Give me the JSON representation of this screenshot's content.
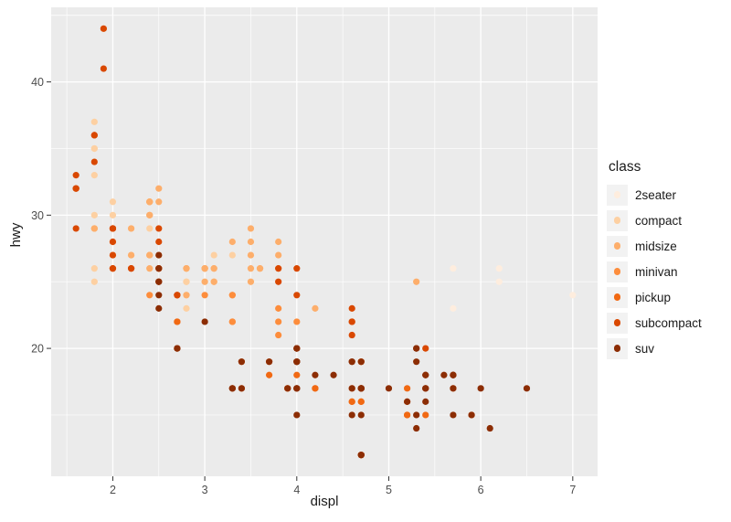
{
  "chart_data": {
    "type": "scatter",
    "title": "",
    "xlabel": "displ",
    "ylabel": "hwy",
    "legend_title": "class",
    "legend_position": "right",
    "grid": true,
    "xlim": [
      1.33,
      7.27
    ],
    "ylim": [
      10.4,
      45.6
    ],
    "x_ticks": [
      2,
      3,
      4,
      5,
      6,
      7
    ],
    "y_ticks": [
      20,
      30,
      40
    ],
    "x_minor_ticks": [
      1.5,
      2.5,
      3.5,
      4.5,
      5.5,
      6.5
    ],
    "y_minor_ticks": [
      15,
      25,
      35,
      45
    ],
    "series": [
      {
        "name": "2seater",
        "color": "#FEEDDE",
        "points": [
          [
            5.7,
            26
          ],
          [
            5.7,
            23
          ],
          [
            6.2,
            26
          ],
          [
            6.2,
            25
          ],
          [
            7.0,
            24
          ]
        ]
      },
      {
        "name": "compact",
        "color": "#FDD0A2",
        "points": [
          [
            1.8,
            29
          ],
          [
            1.8,
            29
          ],
          [
            2.0,
            31
          ],
          [
            2.0,
            30
          ],
          [
            2.8,
            26
          ],
          [
            2.8,
            26
          ],
          [
            3.1,
            27
          ],
          [
            1.8,
            26
          ],
          [
            1.8,
            25
          ],
          [
            2.0,
            28
          ],
          [
            2.0,
            27
          ],
          [
            2.8,
            25
          ],
          [
            2.8,
            25
          ],
          [
            3.1,
            25
          ],
          [
            3.1,
            25
          ],
          [
            2.4,
            29
          ],
          [
            2.4,
            27
          ],
          [
            2.5,
            25
          ],
          [
            2.5,
            27
          ],
          [
            2.5,
            25
          ],
          [
            2.5,
            27
          ],
          [
            2.2,
            27
          ],
          [
            2.2,
            29
          ],
          [
            2.4,
            31
          ],
          [
            2.4,
            31
          ],
          [
            3.0,
            26
          ],
          [
            3.0,
            26
          ],
          [
            3.3,
            27
          ],
          [
            1.8,
            30
          ],
          [
            1.8,
            33
          ],
          [
            1.8,
            35
          ],
          [
            1.8,
            37
          ],
          [
            1.8,
            35
          ],
          [
            2.0,
            29
          ],
          [
            2.0,
            26
          ],
          [
            2.0,
            29
          ],
          [
            2.0,
            29
          ],
          [
            2.8,
            24
          ],
          [
            1.9,
            44
          ],
          [
            2.0,
            29
          ],
          [
            2.0,
            26
          ],
          [
            2.0,
            29
          ],
          [
            2.0,
            29
          ],
          [
            2.5,
            29
          ],
          [
            2.5,
            29
          ],
          [
            2.8,
            23
          ],
          [
            2.8,
            24
          ]
        ]
      },
      {
        "name": "midsize",
        "color": "#FDAE6B",
        "points": [
          [
            2.8,
            24
          ],
          [
            3.1,
            25
          ],
          [
            4.2,
            23
          ],
          [
            2.4,
            27
          ],
          [
            2.4,
            30
          ],
          [
            3.1,
            26
          ],
          [
            3.5,
            29
          ],
          [
            3.6,
            26
          ],
          [
            2.4,
            26
          ],
          [
            2.4,
            27
          ],
          [
            2.4,
            30
          ],
          [
            2.4,
            31
          ],
          [
            2.5,
            26
          ],
          [
            2.5,
            26
          ],
          [
            3.3,
            28
          ],
          [
            2.5,
            31
          ],
          [
            2.5,
            32
          ],
          [
            3.5,
            27
          ],
          [
            3.5,
            26
          ],
          [
            3.0,
            26
          ],
          [
            3.0,
            25
          ],
          [
            3.5,
            25
          ],
          [
            3.1,
            26
          ],
          [
            3.8,
            26
          ],
          [
            3.8,
            27
          ],
          [
            3.8,
            28
          ],
          [
            5.3,
            25
          ],
          [
            2.2,
            29
          ],
          [
            2.2,
            27
          ],
          [
            2.4,
            31
          ],
          [
            2.4,
            31
          ],
          [
            3.0,
            26
          ],
          [
            3.0,
            26
          ],
          [
            3.5,
            28
          ],
          [
            1.8,
            29
          ],
          [
            1.8,
            29
          ],
          [
            2.0,
            28
          ],
          [
            2.0,
            29
          ],
          [
            2.8,
            26
          ],
          [
            2.8,
            26
          ],
          [
            3.6,
            26
          ]
        ]
      },
      {
        "name": "minivan",
        "color": "#FD8D3C",
        "points": [
          [
            2.4,
            24
          ],
          [
            3.0,
            24
          ],
          [
            3.3,
            22
          ],
          [
            3.3,
            22
          ],
          [
            3.3,
            24
          ],
          [
            3.3,
            24
          ],
          [
            3.3,
            17
          ],
          [
            3.8,
            22
          ],
          [
            3.8,
            21
          ],
          [
            3.8,
            23
          ],
          [
            4.0,
            22
          ]
        ]
      },
      {
        "name": "pickup",
        "color": "#F16913",
        "points": [
          [
            3.7,
            19
          ],
          [
            3.7,
            18
          ],
          [
            3.9,
            17
          ],
          [
            3.9,
            17
          ],
          [
            4.7,
            19
          ],
          [
            4.7,
            19
          ],
          [
            4.7,
            12
          ],
          [
            5.2,
            17
          ],
          [
            5.2,
            15
          ],
          [
            4.7,
            16
          ],
          [
            4.7,
            12
          ],
          [
            4.7,
            17
          ],
          [
            4.7,
            17
          ],
          [
            4.7,
            16
          ],
          [
            4.7,
            12
          ],
          [
            5.2,
            15
          ],
          [
            5.2,
            16
          ],
          [
            5.7,
            17
          ],
          [
            5.9,
            15
          ],
          [
            4.2,
            17
          ],
          [
            4.2,
            17
          ],
          [
            4.6,
            16
          ],
          [
            4.6,
            16
          ],
          [
            4.6,
            17
          ],
          [
            5.4,
            15
          ],
          [
            5.4,
            17
          ],
          [
            2.7,
            22
          ],
          [
            2.7,
            20
          ],
          [
            2.7,
            22
          ],
          [
            3.4,
            17
          ],
          [
            3.4,
            19
          ],
          [
            4.0,
            18
          ],
          [
            4.0,
            20
          ]
        ]
      },
      {
        "name": "subcompact",
        "color": "#D94801",
        "points": [
          [
            3.8,
            26
          ],
          [
            3.8,
            25
          ],
          [
            4.0,
            26
          ],
          [
            4.0,
            24
          ],
          [
            4.6,
            21
          ],
          [
            4.6,
            22
          ],
          [
            4.6,
            23
          ],
          [
            4.6,
            22
          ],
          [
            5.4,
            20
          ],
          [
            1.6,
            33
          ],
          [
            1.6,
            32
          ],
          [
            1.6,
            32
          ],
          [
            1.6,
            29
          ],
          [
            1.6,
            32
          ],
          [
            1.8,
            34
          ],
          [
            1.8,
            36
          ],
          [
            1.8,
            36
          ],
          [
            2.0,
            29
          ],
          [
            2.0,
            26
          ],
          [
            2.0,
            29
          ],
          [
            2.0,
            28
          ],
          [
            2.0,
            27
          ],
          [
            2.7,
            24
          ],
          [
            2.7,
            24
          ],
          [
            2.7,
            24
          ],
          [
            2.2,
            26
          ],
          [
            2.2,
            26
          ],
          [
            2.5,
            26
          ],
          [
            2.5,
            26
          ],
          [
            1.9,
            44
          ],
          [
            1.9,
            41
          ],
          [
            2.0,
            29
          ],
          [
            2.0,
            26
          ],
          [
            2.5,
            28
          ],
          [
            2.5,
            29
          ]
        ]
      },
      {
        "name": "suv",
        "color": "#8C2D04",
        "points": [
          [
            5.3,
            20
          ],
          [
            5.3,
            15
          ],
          [
            5.3,
            20
          ],
          [
            5.7,
            17
          ],
          [
            6.0,
            17
          ],
          [
            5.3,
            19
          ],
          [
            5.3,
            14
          ],
          [
            5.7,
            15
          ],
          [
            6.5,
            17
          ],
          [
            3.9,
            17
          ],
          [
            4.7,
            17
          ],
          [
            4.7,
            12
          ],
          [
            4.7,
            17
          ],
          [
            5.2,
            16
          ],
          [
            5.7,
            18
          ],
          [
            5.9,
            15
          ],
          [
            4.6,
            17
          ],
          [
            5.4,
            17
          ],
          [
            5.4,
            18
          ],
          [
            4.0,
            17
          ],
          [
            4.0,
            17
          ],
          [
            4.0,
            19
          ],
          [
            4.0,
            19
          ],
          [
            4.0,
            19
          ],
          [
            4.6,
            19
          ],
          [
            3.0,
            22
          ],
          [
            3.7,
            19
          ],
          [
            4.0,
            20
          ],
          [
            4.7,
            17
          ],
          [
            4.7,
            12
          ],
          [
            4.7,
            19
          ],
          [
            5.7,
            18
          ],
          [
            6.1,
            14
          ],
          [
            4.0,
            15
          ],
          [
            4.2,
            18
          ],
          [
            4.4,
            18
          ],
          [
            4.6,
            15
          ],
          [
            5.4,
            17
          ],
          [
            5.4,
            16
          ],
          [
            5.4,
            18
          ],
          [
            4.0,
            17
          ],
          [
            4.0,
            19
          ],
          [
            4.6,
            19
          ],
          [
            5.0,
            17
          ],
          [
            3.3,
            17
          ],
          [
            3.3,
            17
          ],
          [
            4.0,
            20
          ],
          [
            5.6,
            18
          ],
          [
            2.5,
            25
          ],
          [
            2.5,
            24
          ],
          [
            2.5,
            27
          ],
          [
            2.5,
            25
          ],
          [
            2.5,
            26
          ],
          [
            2.5,
            23
          ],
          [
            2.7,
            20
          ],
          [
            2.7,
            20
          ],
          [
            3.4,
            19
          ],
          [
            3.4,
            17
          ],
          [
            4.0,
            20
          ],
          [
            4.7,
            17
          ],
          [
            4.7,
            15
          ],
          [
            5.7,
            18
          ]
        ]
      }
    ]
  },
  "theme": {
    "plot_background": "#FFFFFF",
    "panel_background": "#EBEBEB",
    "grid_major_color": "#FFFFFF",
    "grid_minor_color": "#FFFFFF",
    "tick_mark_color": "#333333",
    "axis_text_color": "#4D4D4D",
    "axis_title_color": "#1A1A1A",
    "legend_key_background": "#F2F2F2",
    "point_radius": 3.6
  }
}
